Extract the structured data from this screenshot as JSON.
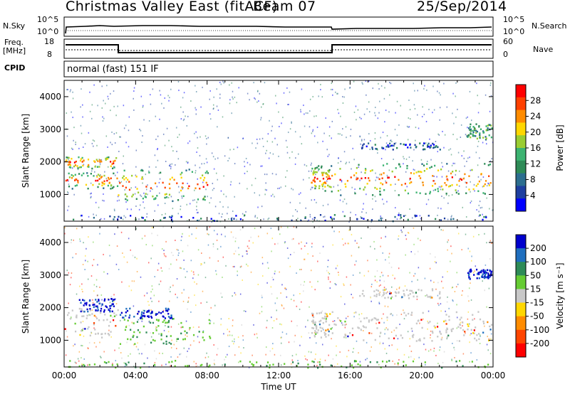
{
  "header": {
    "station": "Christmas Valley East (fitACF)",
    "beam": "Beam 07",
    "date": "25/Sep/2014"
  },
  "top_panels": {
    "nsky_label": "N.Sky",
    "nsearch_label": "N.Search",
    "nsky_ticks": [
      "10^5",
      "10^0"
    ],
    "nsearch_ticks": [
      "10^5",
      "10^0"
    ],
    "freq_label_1": "Freq.",
    "freq_label_2": "[MHz]",
    "freq_ticks": [
      "18",
      "8"
    ],
    "nave_label": "Nave",
    "nave_ticks": [
      "60",
      "0"
    ],
    "cpid_label": "CPID",
    "cpid_value": "normal (fast) 151 IF"
  },
  "chart_data": [
    {
      "type": "heatmap",
      "panel": "power",
      "ylabel": "Slant Range [km]",
      "y_ticks": [
        "1000",
        "2000",
        "3000",
        "4000"
      ],
      "ylim": [
        180,
        4500
      ],
      "xlim": [
        "00:00",
        "24:00"
      ],
      "colorbar": {
        "label": "Power [dB]",
        "ticks": [
          "28",
          "24",
          "20",
          "16",
          "12",
          "8",
          "4"
        ],
        "colors": [
          "#ff0000",
          "#ff4000",
          "#ff8c00",
          "#ffd700",
          "#9acd32",
          "#3cb371",
          "#2e8b57",
          "#2c6e8f",
          "#1e3fa0",
          "#0000ff"
        ]
      },
      "regions": [
        {
          "t": [
            0.0,
            3.0
          ],
          "r": [
            1200,
            1700
          ],
          "level": "high"
        },
        {
          "t": [
            0.0,
            3.0
          ],
          "r": [
            1800,
            2200
          ],
          "level": "high"
        },
        {
          "t": [
            3.0,
            8.2
          ],
          "r": [
            800,
            1800
          ],
          "level": "high"
        },
        {
          "t": [
            13.8,
            15.0
          ],
          "r": [
            1100,
            1900
          ],
          "level": "high"
        },
        {
          "t": [
            15.0,
            23.9
          ],
          "r": [
            1000,
            2000
          ],
          "level": "high"
        },
        {
          "t": [
            16.5,
            21.0
          ],
          "r": [
            2400,
            2600
          ],
          "level": "low"
        },
        {
          "t": [
            22.5,
            23.9
          ],
          "r": [
            2700,
            3200
          ],
          "level": "mid"
        },
        {
          "t": [
            0.0,
            24.0
          ],
          "r": [
            200,
            400
          ],
          "level": "low"
        }
      ]
    },
    {
      "type": "heatmap",
      "panel": "velocity",
      "ylabel": "Slant Range [km]",
      "xlabel": "Time UT",
      "x_ticks": [
        "00:00",
        "04:00",
        "08:00",
        "12:00",
        "16:00",
        "20:00",
        "00:00"
      ],
      "y_ticks": [
        "1000",
        "2000",
        "3000",
        "4000"
      ],
      "ylim": [
        180,
        4500
      ],
      "xlim": [
        "00:00",
        "24:00"
      ],
      "colorbar": {
        "label": "Velocity [m s⁻¹]",
        "ticks": [
          "200",
          "100",
          "50",
          "15",
          "-15",
          "-50",
          "-100",
          "-200"
        ],
        "colors": [
          "#0000cd",
          "#1f6fbf",
          "#2e8b57",
          "#66cc33",
          "#c8c8c8",
          "#ffd700",
          "#ff8c00",
          "#ff4500",
          "#ff0000"
        ]
      },
      "regions": [
        {
          "t": [
            0.0,
            3.0
          ],
          "r": [
            1100,
            2000
          ],
          "class": "ground"
        },
        {
          "t": [
            0.8,
            2.8
          ],
          "r": [
            1900,
            2300
          ],
          "class": "blue"
        },
        {
          "t": [
            3.0,
            8.2
          ],
          "r": [
            900,
            1700
          ],
          "class": "green"
        },
        {
          "t": [
            3.0,
            6.0
          ],
          "r": [
            1700,
            2000
          ],
          "class": "blue"
        },
        {
          "t": [
            13.8,
            15.0
          ],
          "r": [
            1100,
            1900
          ],
          "class": "ground"
        },
        {
          "t": [
            15.0,
            23.9
          ],
          "r": [
            1000,
            1900
          ],
          "class": "ground"
        },
        {
          "t": [
            16.5,
            21.0
          ],
          "r": [
            2300,
            2600
          ],
          "class": "ground"
        },
        {
          "t": [
            22.5,
            23.9
          ],
          "r": [
            2900,
            3200
          ],
          "class": "blue"
        },
        {
          "t": [
            0.0,
            24.0
          ],
          "r": [
            180,
            400
          ],
          "class": "green"
        }
      ]
    }
  ]
}
